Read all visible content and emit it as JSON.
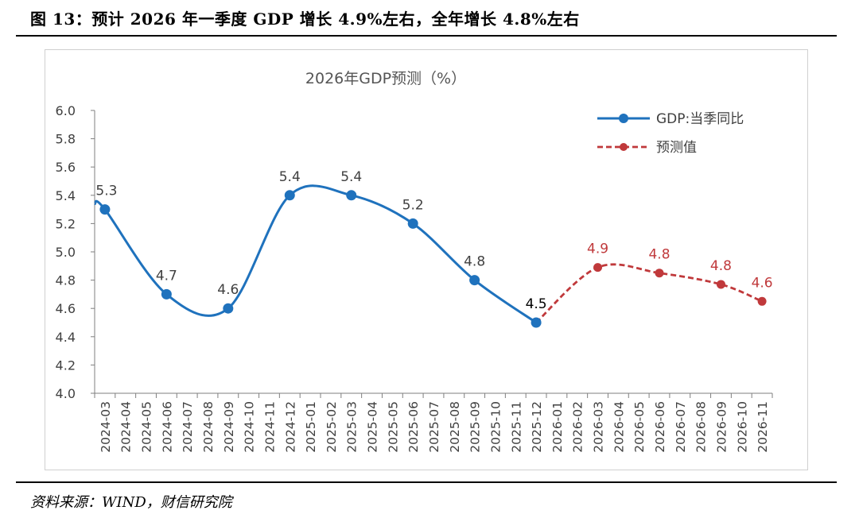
{
  "figure": {
    "title": "图 13：预计 2026 年一季度 GDP 增长 4.9%左右，全年增长 4.8%左右",
    "source": "资料来源：WIND，财信研究院"
  },
  "chart_data": {
    "type": "line",
    "title": "2026年GDP预测（%）",
    "categories": [
      "2024-03",
      "2024-04",
      "2024-05",
      "2024-06",
      "2024-07",
      "2024-08",
      "2024-09",
      "2024-10",
      "2024-11",
      "2024-12",
      "2025-01",
      "2025-02",
      "2025-03",
      "2025-04",
      "2025-05",
      "2025-06",
      "2025-07",
      "2025-08",
      "2025-09",
      "2025-10",
      "2025-11",
      "2025-12",
      "2026-01",
      "2026-02",
      "2026-03",
      "2026-04",
      "2026-05",
      "2026-06",
      "2026-07",
      "2026-08",
      "2026-09",
      "2026-10",
      "2026-11"
    ],
    "ylim": [
      4.0,
      6.0
    ],
    "yticks": [
      "6.0",
      "5.8",
      "5.6",
      "5.4",
      "5.2",
      "5.0",
      "4.8",
      "4.6",
      "4.4",
      "4.2",
      "4.0"
    ],
    "legend_position": "top-right",
    "series": [
      {
        "name": "GDP:当季同比",
        "color": "#1f72bd",
        "style": "solid",
        "points": [
          {
            "x": "2024-03",
            "y": 5.3,
            "label": "5.3"
          },
          {
            "x": "2024-06",
            "y": 4.7,
            "label": "4.7"
          },
          {
            "x": "2024-09",
            "y": 4.6,
            "label": "4.6"
          },
          {
            "x": "2024-12",
            "y": 5.4,
            "label": "5.4"
          },
          {
            "x": "2025-03",
            "y": 5.4,
            "label": "5.4"
          },
          {
            "x": "2025-06",
            "y": 5.2,
            "label": "5.2"
          },
          {
            "x": "2025-09",
            "y": 4.8,
            "label": "4.8"
          },
          {
            "x": "2025-12",
            "y": 4.5,
            "label": "4.5"
          }
        ]
      },
      {
        "name": "预测值",
        "color": "#c0393b",
        "style": "dashed",
        "points": [
          {
            "x": "2025-12",
            "y": 4.5,
            "label": ""
          },
          {
            "x": "2026-03",
            "y": 4.89,
            "label": "4.9"
          },
          {
            "x": "2026-06",
            "y": 4.85,
            "label": "4.8"
          },
          {
            "x": "2026-09",
            "y": 4.77,
            "label": "4.8"
          },
          {
            "x": "2026-11",
            "y": 4.65,
            "label": "4.6"
          }
        ]
      }
    ]
  }
}
